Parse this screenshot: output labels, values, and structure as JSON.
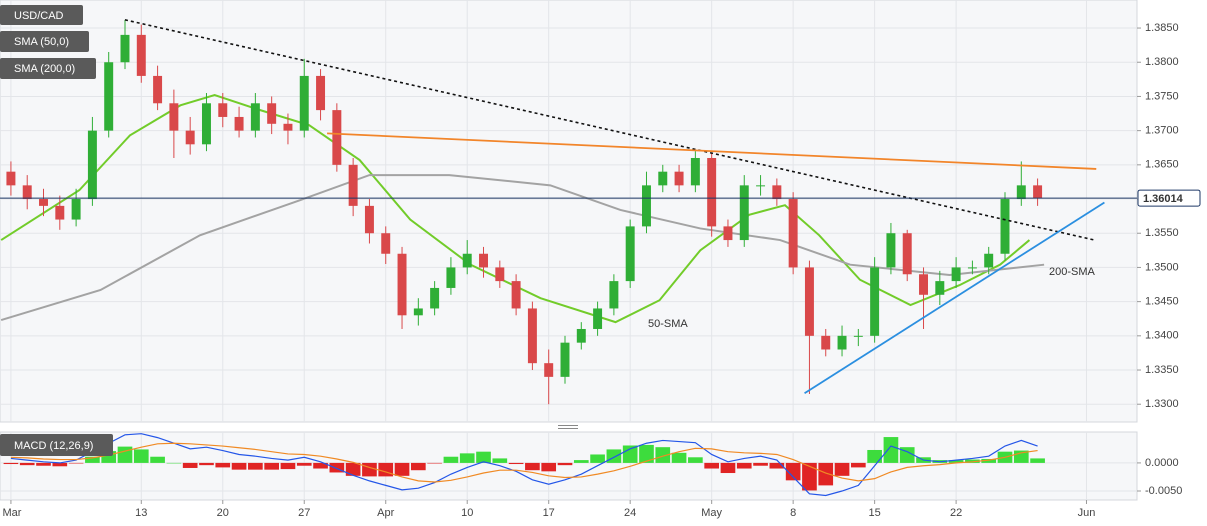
{
  "chart_data": {
    "type": "candlestick",
    "symbol": "USD/CAD",
    "x": [
      0,
      1,
      2,
      3,
      4,
      5,
      6,
      7,
      8,
      9,
      10,
      11,
      12,
      13,
      14,
      15,
      16,
      17,
      18,
      19,
      20,
      21,
      22,
      23,
      24,
      25,
      26,
      27,
      28,
      29,
      30,
      31,
      32,
      33,
      34,
      35,
      36,
      37,
      38,
      39,
      40,
      41,
      42,
      43,
      44,
      45,
      46,
      47,
      48,
      49,
      50,
      51,
      52,
      53,
      54,
      55,
      56,
      57,
      58,
      59,
      60,
      61,
      62,
      63
    ],
    "open": [
      1.364,
      1.362,
      1.36,
      1.359,
      1.357,
      1.36,
      1.37,
      1.38,
      1.384,
      1.378,
      1.374,
      1.37,
      1.368,
      1.374,
      1.372,
      1.37,
      1.374,
      1.371,
      1.37,
      1.378,
      1.373,
      1.365,
      1.359,
      1.355,
      1.352,
      1.343,
      1.344,
      1.347,
      1.35,
      1.352,
      1.35,
      1.348,
      1.344,
      1.336,
      1.334,
      1.339,
      1.341,
      1.344,
      1.348,
      1.356,
      1.362,
      1.364,
      1.362,
      1.366,
      1.356,
      1.354,
      1.362,
      1.362,
      1.36,
      1.35,
      1.34,
      1.338,
      1.34,
      1.34,
      1.35,
      1.355,
      1.349,
      1.346,
      1.348,
      1.35,
      1.35,
      1.352,
      1.36,
      1.362
    ],
    "high": [
      1.3655,
      1.3635,
      1.3615,
      1.3605,
      1.3615,
      1.372,
      1.3815,
      1.3862,
      1.3855,
      1.3795,
      1.376,
      1.372,
      1.3755,
      1.3755,
      1.3735,
      1.3755,
      1.375,
      1.3725,
      1.3805,
      1.379,
      1.374,
      1.366,
      1.36,
      1.356,
      1.353,
      1.3455,
      1.348,
      1.3515,
      1.354,
      1.353,
      1.351,
      1.349,
      1.345,
      1.338,
      1.34,
      1.342,
      1.345,
      1.349,
      1.357,
      1.364,
      1.365,
      1.365,
      1.367,
      1.3668,
      1.357,
      1.3635,
      1.3635,
      1.363,
      1.361,
      1.351,
      1.341,
      1.3415,
      1.341,
      1.3515,
      1.3565,
      1.3555,
      1.35,
      1.3495,
      1.3515,
      1.351,
      1.353,
      1.361,
      1.3655,
      1.363
    ],
    "low": [
      1.3605,
      1.3585,
      1.3575,
      1.3555,
      1.356,
      1.359,
      1.369,
      1.379,
      1.377,
      1.373,
      1.366,
      1.3665,
      1.367,
      1.3705,
      1.369,
      1.369,
      1.3695,
      1.368,
      1.369,
      1.3715,
      1.364,
      1.3575,
      1.3535,
      1.3505,
      1.341,
      1.3415,
      1.343,
      1.346,
      1.349,
      1.3485,
      1.347,
      1.343,
      1.335,
      1.33,
      1.333,
      1.338,
      1.34,
      1.343,
      1.347,
      1.355,
      1.361,
      1.361,
      1.361,
      1.3545,
      1.353,
      1.353,
      1.3605,
      1.359,
      1.349,
      1.3315,
      1.337,
      1.337,
      1.3385,
      1.339,
      1.349,
      1.348,
      1.341,
      1.3445,
      1.347,
      1.349,
      1.349,
      1.351,
      1.359,
      1.359
    ],
    "close": [
      1.362,
      1.36,
      1.359,
      1.357,
      1.36,
      1.37,
      1.38,
      1.384,
      1.378,
      1.374,
      1.37,
      1.368,
      1.374,
      1.372,
      1.37,
      1.374,
      1.371,
      1.37,
      1.378,
      1.373,
      1.365,
      1.359,
      1.355,
      1.352,
      1.343,
      1.344,
      1.347,
      1.35,
      1.352,
      1.35,
      1.348,
      1.344,
      1.336,
      1.334,
      1.339,
      1.341,
      1.344,
      1.348,
      1.356,
      1.362,
      1.364,
      1.362,
      1.366,
      1.356,
      1.354,
      1.362,
      1.362,
      1.36,
      1.35,
      1.34,
      1.338,
      1.34,
      1.34,
      1.35,
      1.355,
      1.349,
      1.346,
      1.348,
      1.35,
      1.35,
      1.352,
      1.36,
      1.362,
      1.3601
    ],
    "up_color": "#2fae36",
    "down_color": "#d9484a",
    "xlim": [
      -0.67,
      69.1
    ],
    "xticks": [
      {
        "value": 0,
        "label": "Mar"
      },
      {
        "value": 8,
        "label": "13"
      },
      {
        "value": 13,
        "label": "20"
      },
      {
        "value": 18,
        "label": "27"
      },
      {
        "value": 23,
        "label": "Apr"
      },
      {
        "value": 28,
        "label": "10"
      },
      {
        "value": 33,
        "label": "17"
      },
      {
        "value": 38,
        "label": "24"
      },
      {
        "value": 43,
        "label": "May"
      },
      {
        "value": 48,
        "label": "8"
      },
      {
        "value": 53,
        "label": "15"
      },
      {
        "value": 58,
        "label": "22"
      },
      {
        "value": 66,
        "label": "Jun"
      }
    ],
    "ylim": [
      1.3274,
      1.3891
    ],
    "yticks": [
      {
        "value": 1.33,
        "label": "1.3300"
      },
      {
        "value": 1.335,
        "label": "1.3350"
      },
      {
        "value": 1.34,
        "label": "1.3400"
      },
      {
        "value": 1.345,
        "label": "1.3450"
      },
      {
        "value": 1.35,
        "label": "1.3500"
      },
      {
        "value": 1.355,
        "label": "1.3550"
      },
      {
        "value": 1.36,
        "label": "1.3600"
      },
      {
        "value": 1.365,
        "label": "1.3650"
      },
      {
        "value": 1.37,
        "label": "1.3700"
      },
      {
        "value": 1.375,
        "label": "1.3750"
      },
      {
        "value": 1.38,
        "label": "1.3800"
      },
      {
        "value": 1.385,
        "label": "1.3850"
      }
    ],
    "grid": true,
    "last_price": 1.36014,
    "last_price_color": "#1d3766",
    "series": [
      {
        "name": "SMA (50,0)",
        "label": "50-SMA",
        "color": "#72cc2a",
        "x": [
          -0.6,
          4.2,
          7.3,
          10.4,
          12.5,
          15.3,
          18.3,
          21.4,
          24.5,
          28.2,
          32.5,
          37.1,
          39.8,
          42.3,
          45.3,
          47.5,
          49.6,
          52.1,
          55.2,
          58.2,
          60.7,
          62.5
        ],
        "values": [
          1.354,
          1.3613,
          1.3693,
          1.3737,
          1.3752,
          1.373,
          1.3708,
          1.3657,
          1.357,
          1.3504,
          1.3455,
          1.342,
          1.3452,
          1.3525,
          1.3577,
          1.3591,
          1.3547,
          1.3482,
          1.3445,
          1.3474,
          1.3504,
          1.354
        ]
      },
      {
        "name": "SMA (200,0)",
        "label": "200-SMA",
        "color": "#a3a3a3",
        "x": [
          -0.6,
          5.5,
          11.6,
          17.7,
          22.0,
          26.9,
          33.1,
          37.4,
          42.3,
          47.2,
          51.5,
          57.6,
          63.4
        ],
        "values": [
          1.3423,
          1.3467,
          1.3547,
          1.3598,
          1.3635,
          1.3635,
          1.362,
          1.3584,
          1.3557,
          1.354,
          1.3504,
          1.3489,
          1.3504
        ]
      }
    ],
    "trendlines": [
      {
        "color": "#111111",
        "dashed": true,
        "x": [
          7.0,
          66.5
        ],
        "values": [
          1.3862,
          1.354
        ]
      },
      {
        "color": "#f2852a",
        "dashed": false,
        "x": [
          19.4,
          66.6
        ],
        "values": [
          1.3696,
          1.3644
        ]
      },
      {
        "color": "#2b8fe0",
        "dashed": false,
        "x": [
          48.7,
          67.1
        ],
        "values": [
          1.3316,
          1.3595
        ]
      }
    ],
    "macd": {
      "name": "MACD (12,26,9)",
      "ylim": [
        -0.0066,
        0.0055
      ],
      "yticks": [
        {
          "value": 0,
          "label": "0.0000"
        },
        {
          "value": -0.005,
          "label": "-0.0050"
        }
      ],
      "macd_color": "#2456e8",
      "signal_color": "#f08a24",
      "hist_up_color": "#3ddc3d",
      "hist_down_color": "#e02424",
      "macd": [
        0.0008,
        0.0005,
        0.0002,
        0.0,
        0.0005,
        0.002,
        0.0035,
        0.005,
        0.0052,
        0.0045,
        0.0035,
        0.0025,
        0.0028,
        0.0022,
        0.0015,
        0.0012,
        0.0008,
        0.0005,
        0.001,
        0.0002,
        -0.001,
        -0.0022,
        -0.0032,
        -0.004,
        -0.0048,
        -0.0045,
        -0.0035,
        -0.002,
        -0.0008,
        0.0002,
        -0.0005,
        -0.0015,
        -0.003,
        -0.0038,
        -0.003,
        -0.002,
        -0.0005,
        0.001,
        0.0025,
        0.0035,
        0.004,
        0.0038,
        0.0036,
        0.0015,
        0.0002,
        0.0008,
        0.0012,
        0.0005,
        -0.0025,
        -0.0055,
        -0.0058,
        -0.005,
        -0.004,
        -0.0005,
        0.003,
        0.002,
        0.0005,
        0.0002,
        0.0005,
        0.0008,
        0.0012,
        0.003,
        0.004,
        0.003
      ],
      "signal": [
        0.001,
        0.0009,
        0.0007,
        0.0006,
        0.0006,
        0.0009,
        0.0014,
        0.0021,
        0.0028,
        0.0034,
        0.0035,
        0.0034,
        0.0032,
        0.003,
        0.0027,
        0.0024,
        0.002,
        0.0016,
        0.0015,
        0.0012,
        0.0007,
        0.0001,
        -0.0008,
        -0.0016,
        -0.0025,
        -0.0032,
        -0.0034,
        -0.0031,
        -0.0025,
        -0.0018,
        -0.0013,
        -0.0013,
        -0.0017,
        -0.0023,
        -0.0026,
        -0.0025,
        -0.002,
        -0.0014,
        -0.0006,
        0.0003,
        0.0012,
        0.002,
        0.0026,
        0.0025,
        0.002,
        0.0018,
        0.0017,
        0.0015,
        0.0006,
        -0.0006,
        -0.0018,
        -0.0027,
        -0.0032,
        -0.0028,
        -0.0016,
        -0.0008,
        -0.0005,
        -0.0003,
        0.0,
        0.0002,
        0.0005,
        0.001,
        0.0018,
        0.0022
      ],
      "histogram": [
        -0.0002,
        -0.0004,
        -0.0005,
        -0.0006,
        -0.0001,
        0.0011,
        0.0021,
        0.0029,
        0.0024,
        0.0011,
        0.0,
        -0.0009,
        -0.0004,
        -0.0008,
        -0.0012,
        -0.0012,
        -0.0012,
        -0.0011,
        -0.0005,
        -0.001,
        -0.0017,
        -0.0023,
        -0.0024,
        -0.0024,
        -0.0023,
        -0.0013,
        -0.0001,
        0.0011,
        0.0017,
        0.002,
        0.0008,
        -0.0002,
        -0.0013,
        -0.0015,
        -0.0004,
        0.0005,
        0.0015,
        0.0024,
        0.0031,
        0.0032,
        0.0028,
        0.0018,
        0.001,
        -0.001,
        -0.0018,
        -0.001,
        -0.0005,
        -0.001,
        -0.0031,
        -0.0049,
        -0.004,
        -0.0023,
        -0.0008,
        0.0023,
        0.0046,
        0.0028,
        0.001,
        0.0005,
        0.0005,
        0.0006,
        0.0007,
        0.002,
        0.0022,
        0.0008
      ]
    }
  }
}
